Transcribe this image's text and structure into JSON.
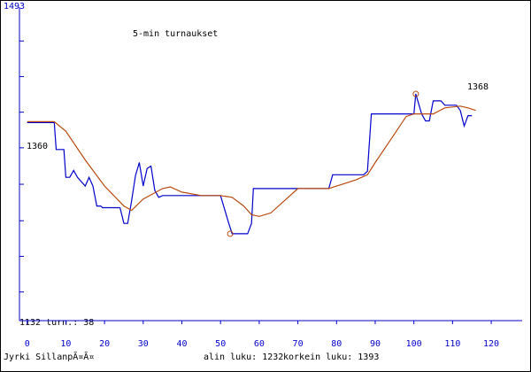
{
  "chart_data": {
    "type": "line",
    "title": "5-min turnaukset",
    "top_label": "1493",
    "bottom_label": "1132 turn.: 38",
    "start_label": "1360",
    "end_label": "1368",
    "author": "Jyrki SillanpÃ¤Ã¤",
    "low": {
      "x": 52.5,
      "value": 1232,
      "label": "alin luku: 1232"
    },
    "high": {
      "x": 100.5,
      "value": 1393,
      "label": "korkein luku: 1393"
    },
    "xlim": [
      -2,
      128
    ],
    "xticks": [
      0,
      10,
      20,
      30,
      40,
      50,
      60,
      70,
      80,
      90,
      100,
      110,
      120
    ],
    "ylim": [
      1132,
      1493
    ],
    "yticks": [
      1454,
      1413,
      1372,
      1331,
      1289,
      1247,
      1206,
      1165
    ],
    "series": [
      {
        "color": "#0000cc",
        "x": [
          0,
          7,
          7.5,
          9.5,
          10,
          11,
          12,
          13,
          15,
          16,
          17,
          18,
          19,
          19.5,
          24,
          25,
          26,
          27,
          28,
          29,
          30,
          31,
          32,
          33,
          34,
          35,
          43,
          50,
          52,
          53,
          57,
          58,
          58.5,
          67,
          78,
          79,
          87,
          88,
          89,
          100,
          100.5,
          102,
          103,
          104,
          105,
          107,
          108,
          111,
          112,
          113,
          114,
          115
        ],
        "values": [
          1360,
          1360,
          1329,
          1329,
          1297,
          1297,
          1305,
          1297,
          1287,
          1297,
          1287,
          1264,
          1264,
          1262,
          1262,
          1244,
          1244,
          1270,
          1299,
          1314,
          1287,
          1307,
          1310,
          1282,
          1274,
          1276,
          1276,
          1276,
          1246,
          1232,
          1232,
          1244,
          1284,
          1284,
          1284,
          1300,
          1300,
          1304,
          1370,
          1370,
          1393,
          1370,
          1362,
          1362,
          1385,
          1385,
          1380,
          1380,
          1374,
          1356,
          1368,
          1368
        ]
      },
      {
        "color": "#b84a10",
        "x": [
          0,
          7,
          10,
          15,
          20,
          25,
          27,
          30,
          35,
          37,
          40,
          45,
          50,
          53,
          56,
          58,
          60,
          63,
          67,
          70,
          78,
          85,
          88,
          90,
          95,
          98,
          100,
          105,
          108,
          112,
          114,
          116
        ],
        "values": [
          1361,
          1361,
          1350,
          1317,
          1287,
          1264,
          1259,
          1272,
          1284,
          1286,
          1280,
          1276,
          1276,
          1274,
          1264,
          1254,
          1252,
          1256,
          1272,
          1284,
          1284,
          1294,
          1300,
          1314,
          1347,
          1367,
          1370,
          1370,
          1377,
          1379,
          1377,
          1374
        ]
      }
    ]
  }
}
